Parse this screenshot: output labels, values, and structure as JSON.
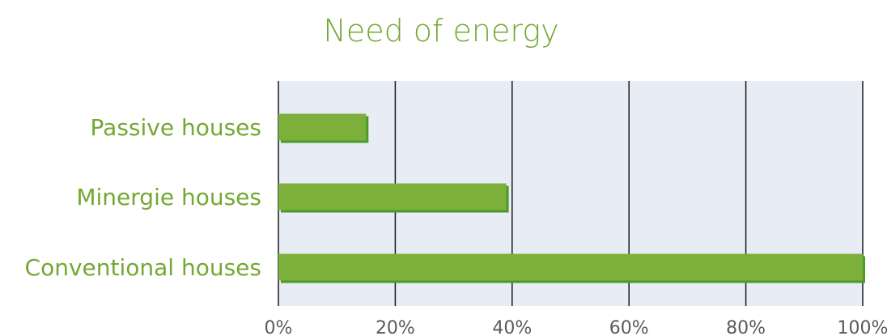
{
  "chart_data": {
    "type": "bar",
    "orientation": "horizontal",
    "title": "Need of energy",
    "categories": [
      "Passive houses",
      "Minergie houses",
      "Conventional houses"
    ],
    "values": [
      15,
      39,
      100
    ],
    "x_ticks": [
      "0%",
      "20%",
      "40%",
      "60%",
      "80%",
      "100%"
    ],
    "xlim": [
      0,
      100
    ],
    "grid": true,
    "legend": "none",
    "xlabel": "",
    "ylabel": ""
  },
  "colors": {
    "title": "#74a833",
    "category_label": "#74a833",
    "bar": "#7cb03a",
    "bar_shadow": "#4a9a2c",
    "plot_background": "#e8ecf5",
    "gridline": "#1a1a1a",
    "tick_label": "#5a5a5a"
  }
}
